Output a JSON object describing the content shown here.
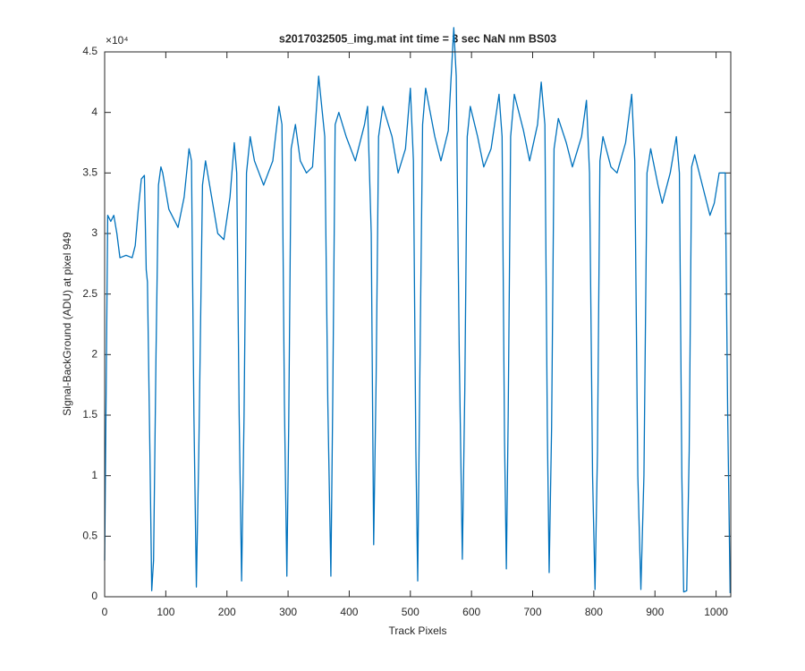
{
  "chart_data": {
    "type": "line",
    "title": "s2017032505_img.mat int time = 3 sec  NaN nm BS03",
    "x_label": "Track Pixels",
    "y_label": "Signal-BackGround (ADU) at pixel 949",
    "y_multiplier": "×10⁴",
    "xlim": [
      0,
      1024
    ],
    "ylim": [
      0,
      4.5
    ],
    "xticks": [
      0,
      100,
      200,
      300,
      400,
      500,
      600,
      700,
      800,
      900,
      1000
    ],
    "yticks": [
      0,
      0.5,
      1,
      1.5,
      2,
      2.5,
      3,
      3.5,
      4,
      4.5
    ],
    "grid": false,
    "series": [
      {
        "name": "signal",
        "color": "#0072bd",
        "x": [
          0,
          5,
          10,
          15,
          20,
          25,
          35,
          45,
          50,
          55,
          60,
          65,
          68,
          70,
          74,
          77,
          80,
          84,
          88,
          92,
          95,
          105,
          120,
          130,
          138,
          142,
          146,
          150,
          154,
          160,
          165,
          175,
          185,
          195,
          205,
          212,
          216,
          220,
          224,
          228,
          232,
          238,
          245,
          260,
          275,
          285,
          290,
          294,
          298,
          301,
          305,
          312,
          320,
          330,
          340,
          350,
          360,
          365,
          370,
          373,
          377,
          383,
          395,
          410,
          425,
          430,
          436,
          440,
          444,
          448,
          455,
          470,
          480,
          492,
          500,
          505,
          509,
          512,
          515,
          520,
          525,
          540,
          550,
          562,
          571,
          575,
          580,
          585,
          589,
          593,
          598,
          610,
          620,
          632,
          645,
          650,
          654,
          657,
          660,
          664,
          670,
          685,
          695,
          708,
          714,
          720,
          724,
          727,
          731,
          735,
          742,
          755,
          765,
          780,
          788,
          793,
          798,
          802,
          806,
          810,
          815,
          828,
          838,
          852,
          862,
          867,
          872,
          877,
          882,
          887,
          893,
          905,
          912,
          925,
          935,
          940,
          944,
          947,
          952,
          956,
          960,
          965,
          980,
          990,
          997,
          1005,
          1015,
          1019,
          1023
        ],
        "values": [
          0.3,
          3.15,
          3.1,
          3.15,
          3.0,
          2.8,
          2.82,
          2.8,
          2.9,
          3.2,
          3.45,
          3.48,
          2.7,
          2.6,
          1.2,
          0.05,
          0.3,
          2.0,
          3.4,
          3.55,
          3.5,
          3.2,
          3.05,
          3.3,
          3.7,
          3.6,
          1.5,
          0.08,
          1.2,
          3.4,
          3.6,
          3.3,
          3.0,
          2.95,
          3.3,
          3.75,
          3.5,
          1.5,
          0.13,
          1.5,
          3.5,
          3.8,
          3.6,
          3.4,
          3.6,
          4.05,
          3.9,
          1.6,
          0.17,
          1.4,
          3.7,
          3.9,
          3.6,
          3.5,
          3.55,
          4.3,
          3.8,
          1.6,
          0.17,
          1.6,
          3.9,
          4.0,
          3.8,
          3.6,
          3.9,
          4.05,
          3.0,
          0.43,
          1.8,
          3.8,
          4.05,
          3.8,
          3.5,
          3.7,
          4.2,
          3.6,
          1.2,
          0.13,
          1.6,
          3.9,
          4.2,
          3.8,
          3.6,
          3.85,
          4.7,
          4.3,
          2.0,
          0.31,
          1.7,
          3.8,
          4.05,
          3.8,
          3.55,
          3.7,
          4.15,
          3.8,
          1.3,
          0.23,
          1.5,
          3.8,
          4.15,
          3.85,
          3.6,
          3.9,
          4.25,
          3.9,
          1.4,
          0.2,
          1.4,
          3.7,
          3.95,
          3.75,
          3.55,
          3.8,
          4.1,
          3.5,
          1.0,
          0.06,
          1.2,
          3.6,
          3.8,
          3.55,
          3.5,
          3.75,
          4.15,
          3.6,
          1.0,
          0.06,
          1.0,
          3.5,
          3.7,
          3.4,
          3.25,
          3.5,
          3.8,
          3.5,
          1.0,
          0.04,
          0.05,
          1.2,
          3.55,
          3.65,
          3.35,
          3.15,
          3.25,
          3.5,
          3.5,
          1.5,
          0.03
        ]
      }
    ]
  }
}
